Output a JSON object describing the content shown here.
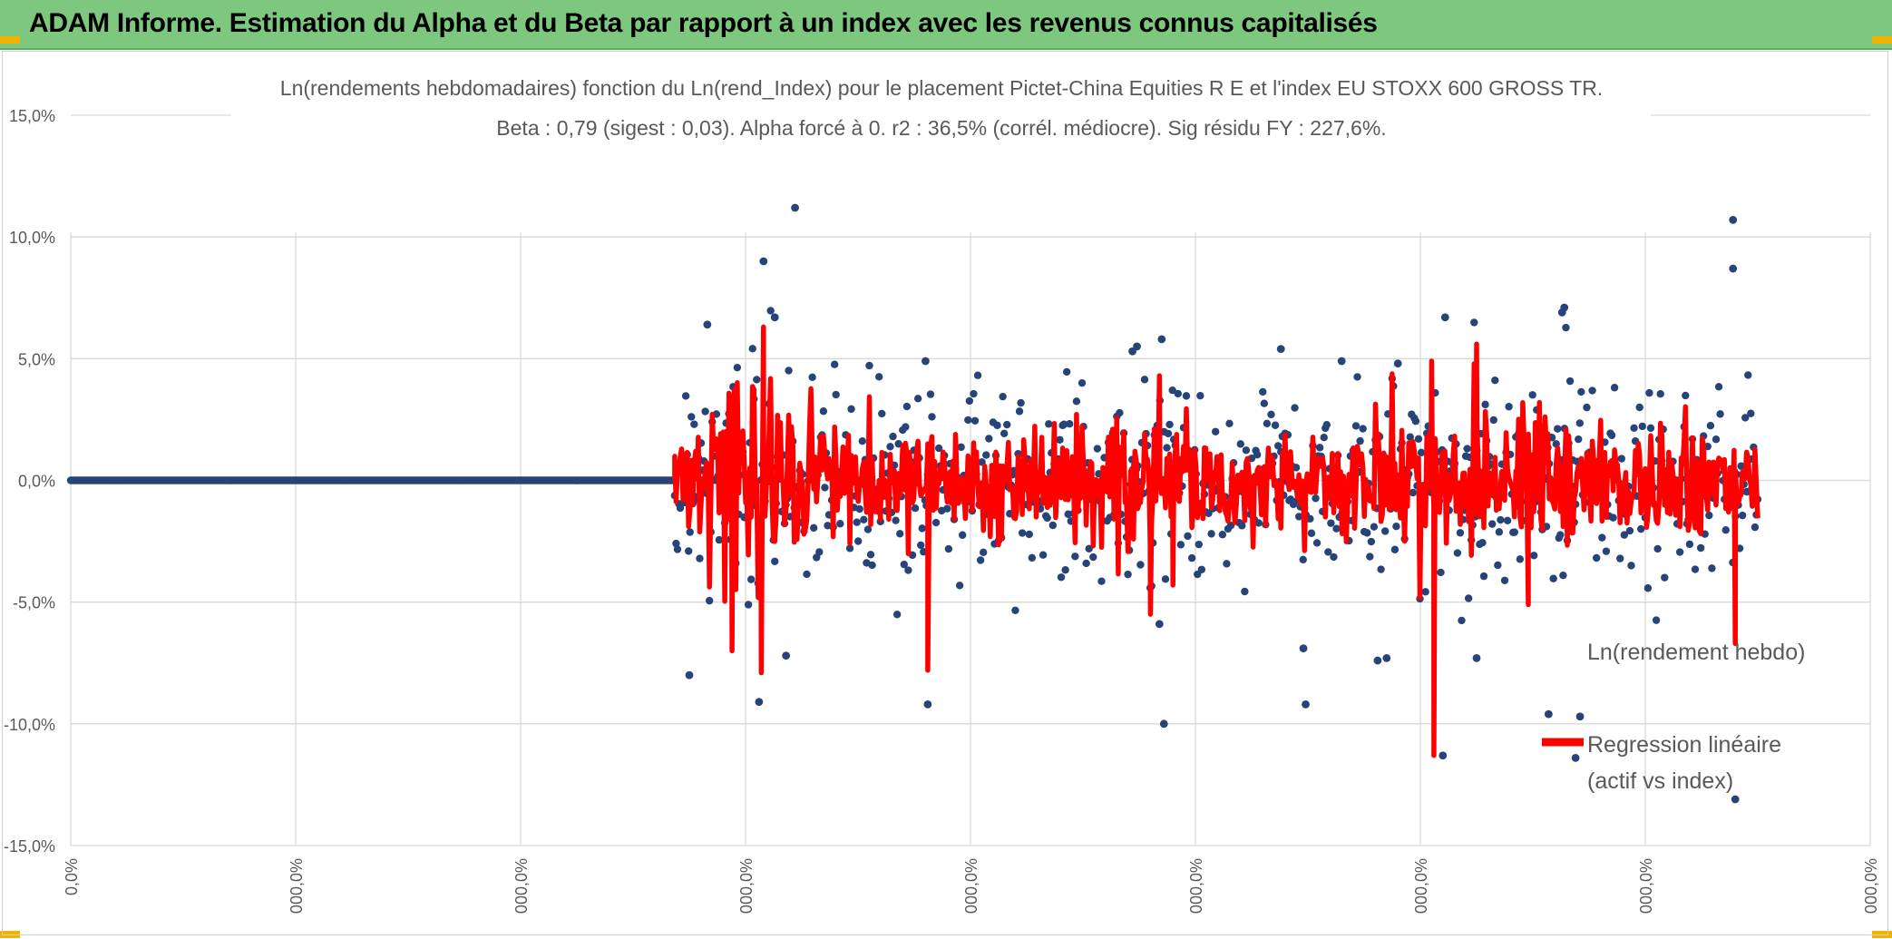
{
  "banner": {
    "title": "ADAM Informe. Estimation du Alpha et du Beta par rapport à un index avec les revenus connus capitalisés"
  },
  "colors": {
    "banner_bg": "#7dc87e",
    "scatter": "#264478",
    "regression": "#ff0000",
    "grid": "#d9d9d9",
    "text": "#595959"
  },
  "chart_data": {
    "type": "scatter",
    "title": "Ln(rendements hebdomadaires) fonction du Ln(rend_Index) pour le placement Pictet-China Equities R E et l'index EU STOXX 600 GROSS TR.",
    "subtitle": "Beta : 0,79 (sigest : 0,03). Alpha forcé à 0. r2 : 36,5% (corrél. médiocre). Sig résidu FY : 227,6%.",
    "y_ticks": [
      {
        "value": 15,
        "label": "15,0%"
      },
      {
        "value": 10,
        "label": "10,0%"
      },
      {
        "value": 5,
        "label": "5,0%"
      },
      {
        "value": 0,
        "label": "0,0%"
      },
      {
        "value": -5,
        "label": "-5,0%"
      },
      {
        "value": -10,
        "label": "-10,0%"
      },
      {
        "value": -15,
        "label": "-15,0%"
      }
    ],
    "x_ticks": [
      "0,0%",
      "000,0%",
      "000,0%",
      "000,0%",
      "000,0%",
      "000,0%",
      "000,0%",
      "000,0%",
      "000,0%"
    ],
    "ylim": [
      -15,
      15
    ],
    "x_range": [
      0,
      8
    ],
    "legend": {
      "placement": "bottom-right",
      "scatter_label": "Ln(rendement hebdo)",
      "line_label_1": "Regression linéaire",
      "line_label_2": "(actif vs index)"
    },
    "series": [
      {
        "name": "Ln(rendement hebdo)",
        "kind": "points",
        "zero_segment": {
          "x_start": 0,
          "x_end": 2.68,
          "y": 0
        },
        "notable_points": [
          {
            "x": 3.22,
            "y": 11.2
          },
          {
            "x": 3.08,
            "y": 9.0
          },
          {
            "x": 7.39,
            "y": 10.7
          },
          {
            "x": 7.39,
            "y": 8.7
          },
          {
            "x": 2.83,
            "y": 6.4
          },
          {
            "x": 3.13,
            "y": 6.7
          },
          {
            "x": 4.74,
            "y": 5.5
          },
          {
            "x": 4.72,
            "y": 5.3
          },
          {
            "x": 4.85,
            "y": 5.8
          },
          {
            "x": 5.65,
            "y": 4.9
          },
          {
            "x": 5.38,
            "y": 5.4
          },
          {
            "x": 6.11,
            "y": 6.7
          },
          {
            "x": 6.64,
            "y": 7.1
          },
          {
            "x": 6.63,
            "y": 6.9
          },
          {
            "x": 5.9,
            "y": 4.8
          },
          {
            "x": 3.8,
            "y": 4.9
          },
          {
            "x": 2.75,
            "y": -8.0
          },
          {
            "x": 3.06,
            "y": -9.1
          },
          {
            "x": 3.81,
            "y": -9.2
          },
          {
            "x": 4.86,
            "y": -10.0
          },
          {
            "x": 5.49,
            "y": -9.2
          },
          {
            "x": 6.1,
            "y": -11.3
          },
          {
            "x": 6.71,
            "y": -9.7
          },
          {
            "x": 6.57,
            "y": -9.6
          },
          {
            "x": 7.4,
            "y": -13.1
          },
          {
            "x": 6.69,
            "y": -11.4
          },
          {
            "x": 6.25,
            "y": -7.3
          },
          {
            "x": 5.85,
            "y": -7.3
          },
          {
            "x": 3.18,
            "y": -7.2
          },
          {
            "x": 5.48,
            "y": -6.9
          },
          {
            "x": 5.81,
            "y": -7.4
          },
          {
            "x": 4.84,
            "y": -5.9
          }
        ]
      },
      {
        "name": "Regression linéaire (actif vs index)",
        "kind": "line",
        "beta": 0.79,
        "alpha": 0,
        "notable_values": [
          {
            "x": 3.08,
            "y": 6.3
          },
          {
            "x": 3.07,
            "y": -7.9
          },
          {
            "x": 3.81,
            "y": -7.8
          },
          {
            "x": 6.06,
            "y": -11.3
          },
          {
            "x": 6.05,
            "y": 4.9
          },
          {
            "x": 6.25,
            "y": 5.6
          },
          {
            "x": 7.4,
            "y": -6.7
          },
          {
            "x": 4.84,
            "y": 4.3
          },
          {
            "x": 4.8,
            "y": -5.5
          },
          {
            "x": 2.94,
            "y": -7.0
          },
          {
            "x": 6.48,
            "y": -5.1
          },
          {
            "x": 4.9,
            "y": -4.3
          }
        ]
      }
    ]
  }
}
